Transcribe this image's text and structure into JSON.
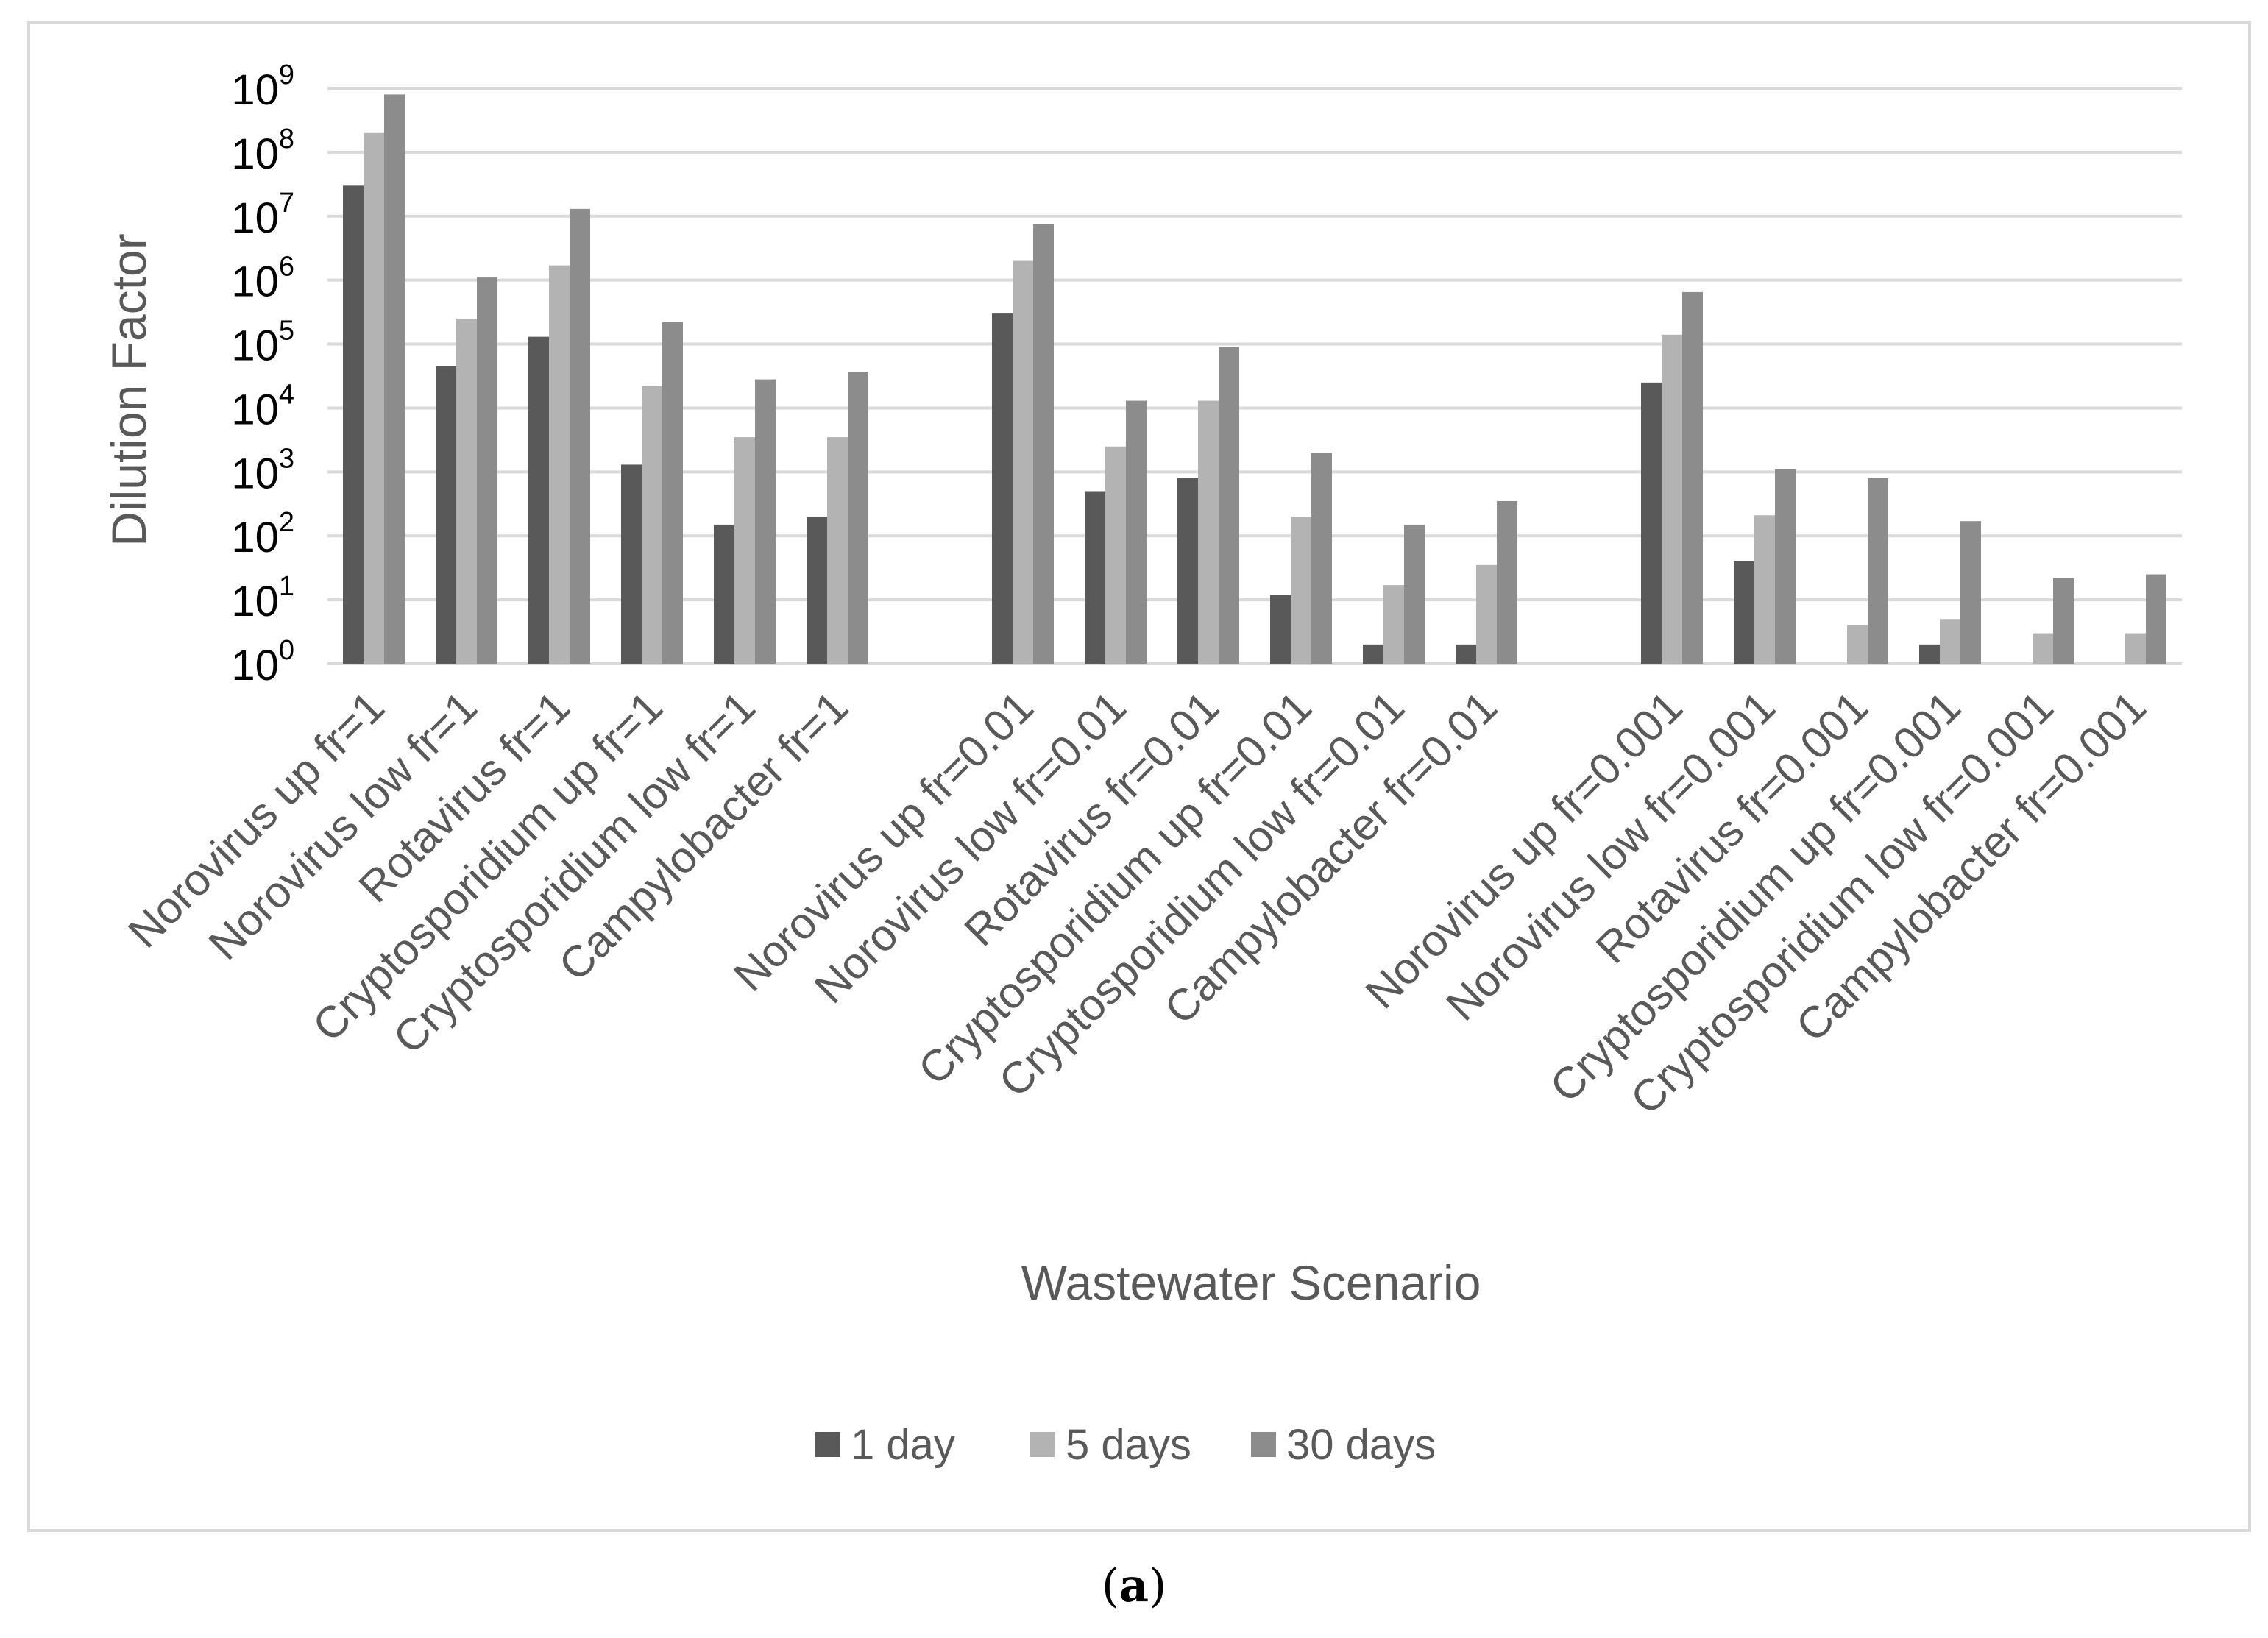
{
  "chart_data": {
    "type": "bar",
    "title": "",
    "xlabel": "Wastewater Scenario",
    "ylabel": "Dilution Factor",
    "yscale": "log",
    "ylim": [
      1,
      1000000000
    ],
    "yticks": [
      {
        "base": "10",
        "exp": "0"
      },
      {
        "base": "10",
        "exp": "1"
      },
      {
        "base": "10",
        "exp": "2"
      },
      {
        "base": "10",
        "exp": "3"
      },
      {
        "base": "10",
        "exp": "4"
      },
      {
        "base": "10",
        "exp": "5"
      },
      {
        "base": "10",
        "exp": "6"
      },
      {
        "base": "10",
        "exp": "7"
      },
      {
        "base": "10",
        "exp": "8"
      },
      {
        "base": "10",
        "exp": "9"
      }
    ],
    "grid": true,
    "legend_position": "bottom",
    "categories": [
      "Norovirus up fr=1",
      "Norovirus low fr=1",
      "Rotavirus fr=1",
      "Cryptosporidium up fr=1",
      "Cryptosporidium low fr=1",
      "Campylobacter fr=1",
      "",
      "Norovirus up fr=0.01",
      "Norovirus low fr=0.01",
      "Rotavirus fr=0.01",
      "Cryptosporidium up fr=0.01",
      "Cryptosporidium low fr=0.01",
      "Campylobacter fr=0.01",
      "",
      "Norovirus up fr=0.001",
      "Norovirus low fr=0.001",
      "Rotavirus fr=0.001",
      "Cryptosporidium up fr=0.001",
      "Cryptosporidium low fr=0.001",
      "Campylobacter fr=0.001"
    ],
    "series": [
      {
        "name": "1 day",
        "color": "#595959",
        "values": [
          30000000,
          45000,
          130000,
          1300,
          150,
          200,
          null,
          300000,
          500,
          800,
          12,
          2,
          2,
          null,
          25000,
          40,
          null,
          2,
          null,
          null
        ]
      },
      {
        "name": "5 days",
        "color": "#b3b3b3",
        "values": [
          200000000,
          250000,
          1700000,
          22000,
          3500,
          3500,
          null,
          2000000,
          2500,
          13000,
          200,
          17,
          35,
          null,
          140000,
          210,
          4,
          5,
          3,
          3
        ]
      },
      {
        "name": "30 days",
        "color": "#8c8c8c",
        "values": [
          800000000,
          1100000,
          13000000,
          220000,
          28000,
          37000,
          null,
          7500000,
          13000,
          90000,
          2000,
          150,
          350,
          null,
          650000,
          1100,
          800,
          170,
          22,
          25
        ]
      }
    ]
  },
  "caption": {
    "open": "(",
    "letter": "a",
    "close": ")"
  }
}
